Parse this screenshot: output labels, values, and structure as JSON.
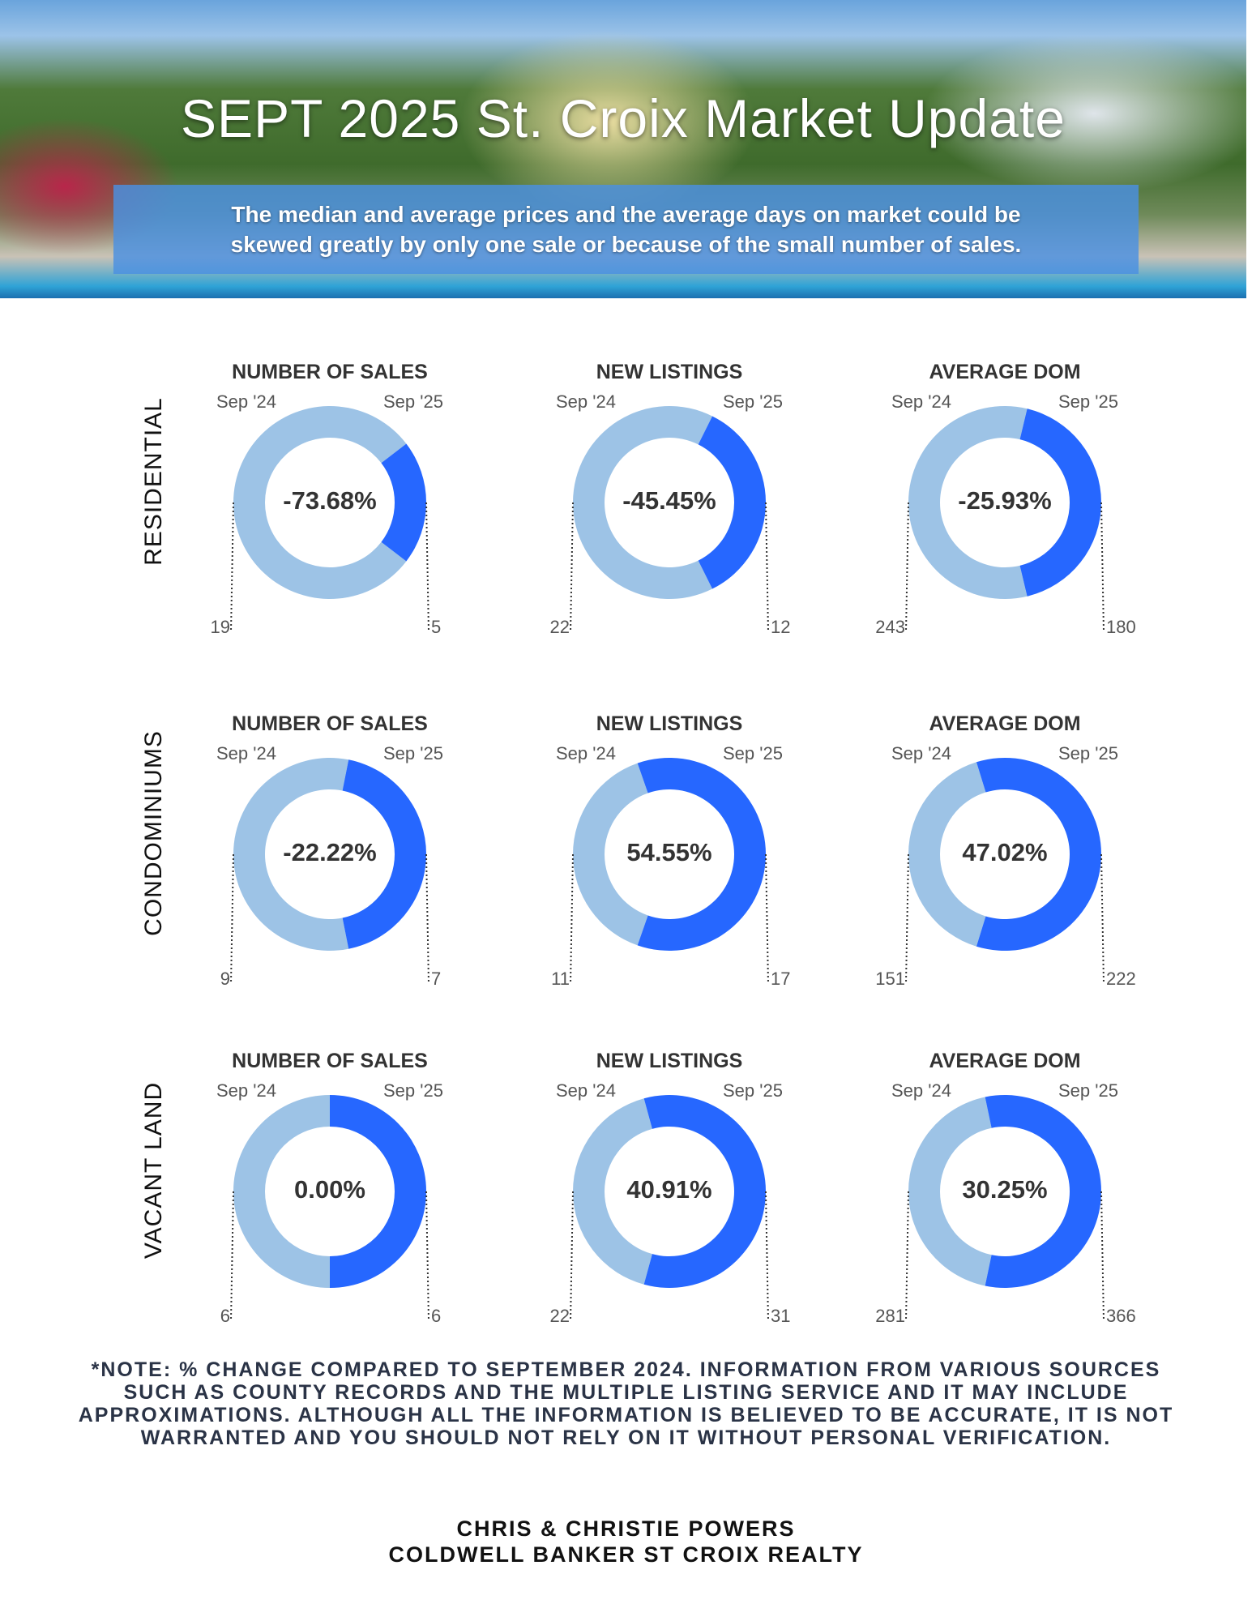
{
  "header": {
    "title": "SEPT 2025 St. Croix Market Update",
    "disclaimer_line1": "The median and average prices and  the average days on market could be",
    "disclaimer_line2": "skewed greatly by only one sale or because of the small number of sales."
  },
  "colors": {
    "prior": "#9dc3e6",
    "current": "#2667ff"
  },
  "sections": [
    {
      "label": "RESIDENTIAL",
      "metrics": [
        {
          "title": "NUMBER OF SALES",
          "prior_label": "Sep '24",
          "current_label": "Sep '25",
          "prior": 19,
          "current": 5,
          "change": "-73.68%"
        },
        {
          "title": "NEW LISTINGS",
          "prior_label": "Sep '24",
          "current_label": "Sep '25",
          "prior": 22,
          "current": 12,
          "change": "-45.45%"
        },
        {
          "title": "AVERAGE DOM",
          "prior_label": "Sep '24",
          "current_label": "Sep '25",
          "prior": 243,
          "current": 180,
          "change": "-25.93%"
        }
      ]
    },
    {
      "label": "CONDOMINIUMS",
      "metrics": [
        {
          "title": "NUMBER OF SALES",
          "prior_label": "Sep '24",
          "current_label": "Sep '25",
          "prior": 9,
          "current": 7,
          "change": "-22.22%"
        },
        {
          "title": "NEW LISTINGS",
          "prior_label": "Sep '24",
          "current_label": "Sep '25",
          "prior": 11,
          "current": 17,
          "change": "54.55%"
        },
        {
          "title": "AVERAGE DOM",
          "prior_label": "Sep '24",
          "current_label": "Sep '25",
          "prior": 151,
          "current": 222,
          "change": "47.02%"
        }
      ]
    },
    {
      "label": "VACANT LAND",
      "metrics": [
        {
          "title": "NUMBER OF SALES",
          "prior_label": "Sep '24",
          "current_label": "Sep '25",
          "prior": 6,
          "current": 6,
          "change": "0.00%"
        },
        {
          "title": "NEW LISTINGS",
          "prior_label": "Sep '24",
          "current_label": "Sep '25",
          "prior": 22,
          "current": 31,
          "change": "40.91%"
        },
        {
          "title": "AVERAGE DOM",
          "prior_label": "Sep '24",
          "current_label": "Sep '25",
          "prior": 281,
          "current": 366,
          "change": "30.25%"
        }
      ]
    }
  ],
  "note": "*NOTE: % CHANGE COMPARED TO SEPTEMBER 2024. INFORMATION FROM VARIOUS SOURCES SUCH AS COUNTY RECORDS AND THE MULTIPLE LISTING SERVICE AND IT MAY INCLUDE APPROXIMATIONS. ALTHOUGH ALL THE INFORMATION IS BELIEVED TO BE ACCURATE, IT IS NOT WARRANTED AND YOU SHOULD NOT RELY ON IT WITHOUT PERSONAL VERIFICATION.",
  "footer": {
    "agents": "CHRIS & CHRISTIE POWERS",
    "brokerage": "COLDWELL BANKER ST CROIX REALTY"
  }
}
